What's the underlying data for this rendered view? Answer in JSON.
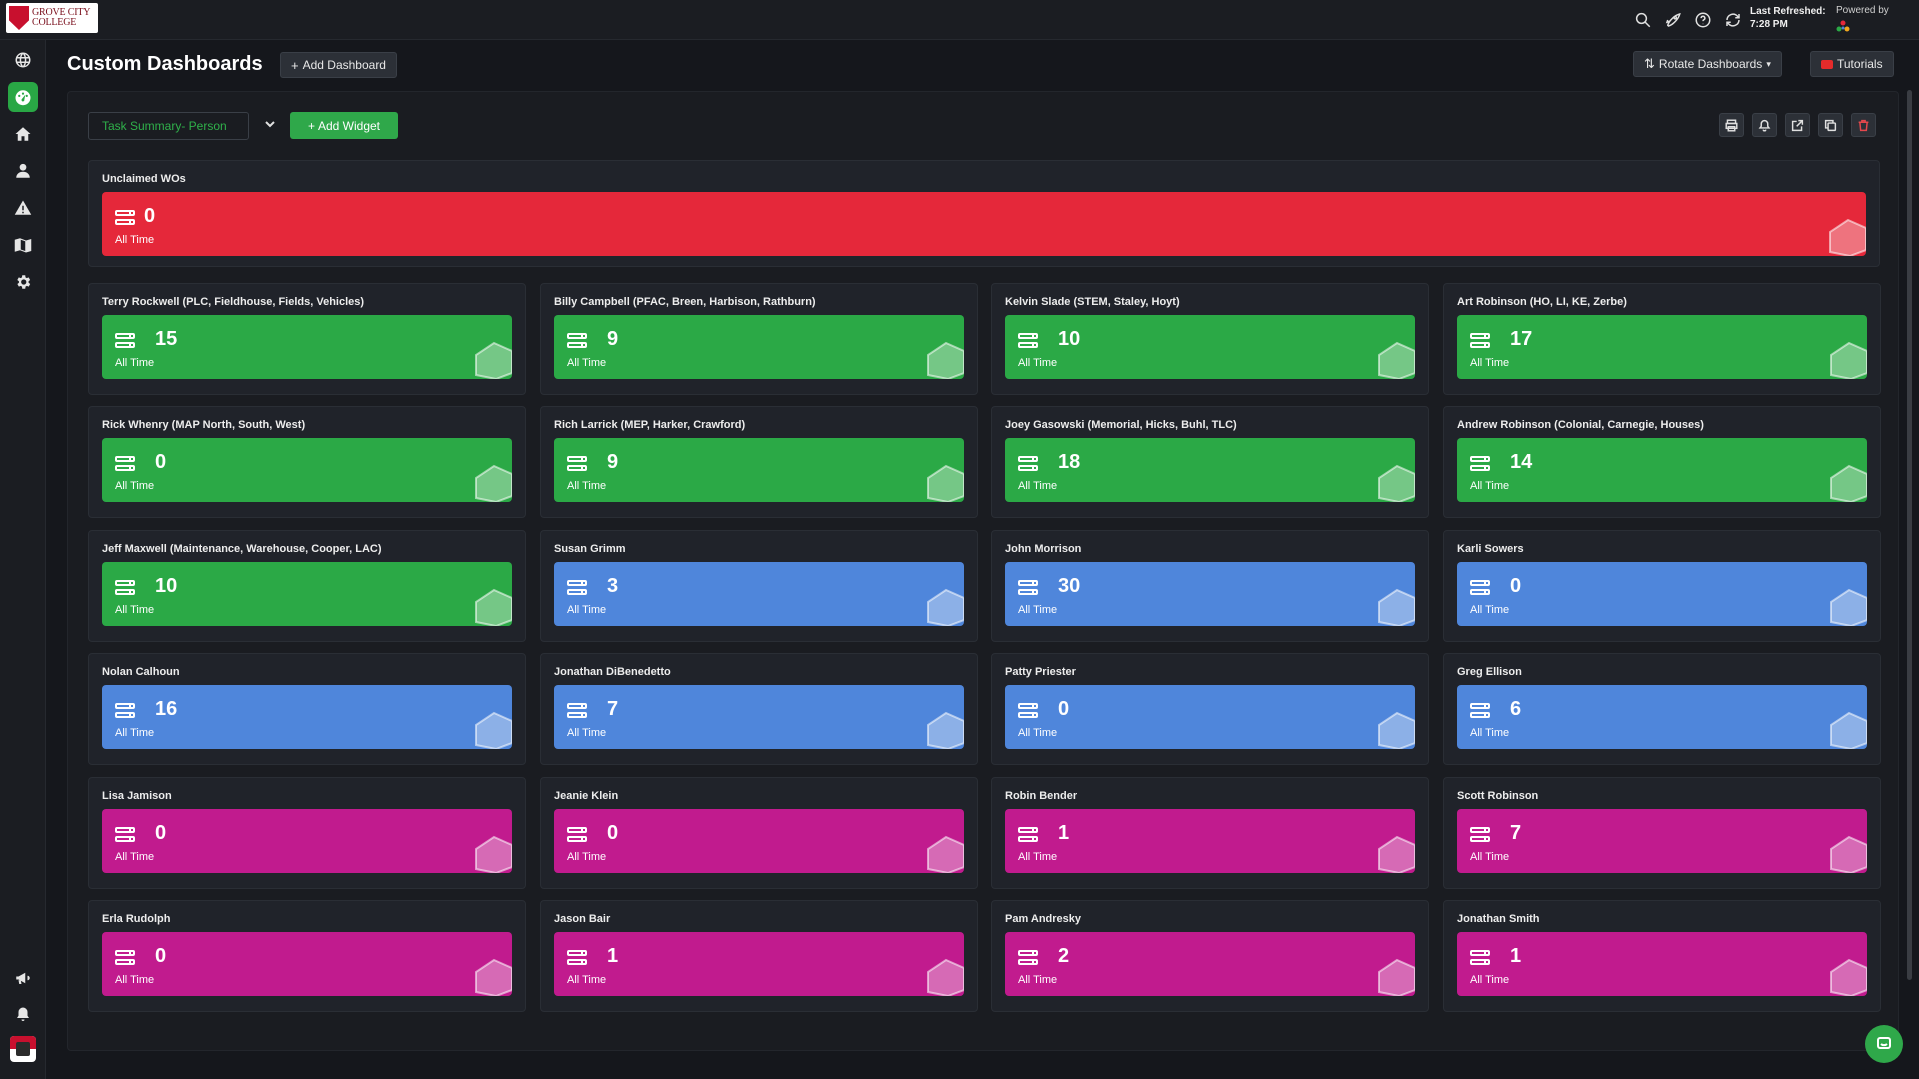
{
  "brand": {
    "logo_text": "GROVE CITY COLLEGE",
    "accent_green": "#2ba946",
    "accent_blue": "#4f86db",
    "accent_magenta": "#c11b8e",
    "accent_red": "#e5283a"
  },
  "topbar": {
    "last_refreshed_label": "Last Refreshed:",
    "last_refreshed_time": "7:28 PM",
    "powered_by": "Powered by",
    "icons": [
      "search-icon",
      "rocket-icon",
      "help-icon",
      "refresh-icon"
    ]
  },
  "sidebar": {
    "items": [
      "globe-icon",
      "dashboard-icon",
      "home-icon",
      "user-icon",
      "warning-icon",
      "map-icon",
      "gear-icon"
    ],
    "bottom_items": [
      "megaphone-icon",
      "bell-icon"
    ]
  },
  "header": {
    "title": "Custom Dashboards",
    "add_dashboard": "Add Dashboard",
    "rotate_dashboards": "Rotate Dashboards",
    "tutorials": "Tutorials"
  },
  "toolbar": {
    "selected_dashboard": "Task Summary- Person",
    "add_widget": "Add Widget",
    "tools": [
      "print-icon",
      "bell-icon",
      "share-icon",
      "copy-icon",
      "trash-icon"
    ]
  },
  "widgets": {
    "unclaimed": {
      "title": "Unclaimed WOs",
      "value": "0",
      "period": "All Time",
      "color": "red"
    },
    "people": [
      {
        "title": "Terry Rockwell (PLC, Fieldhouse, Fields, Vehicles)",
        "value": "15",
        "period": "All Time",
        "color": "green"
      },
      {
        "title": "Billy Campbell (PFAC, Breen, Harbison, Rathburn)",
        "value": "9",
        "period": "All Time",
        "color": "green"
      },
      {
        "title": "Kelvin Slade (STEM, Staley, Hoyt)",
        "value": "10",
        "period": "All Time",
        "color": "green"
      },
      {
        "title": "Art Robinson (HO, LI, KE, Zerbe)",
        "value": "17",
        "period": "All Time",
        "color": "green"
      },
      {
        "title": "Rick Whenry (MAP North, South, West)",
        "value": "0",
        "period": "All Time",
        "color": "green"
      },
      {
        "title": "Rich Larrick (MEP, Harker, Crawford)",
        "value": "9",
        "period": "All Time",
        "color": "green"
      },
      {
        "title": "Joey Gasowski (Memorial, Hicks, Buhl, TLC)",
        "value": "18",
        "period": "All Time",
        "color": "green"
      },
      {
        "title": "Andrew Robinson (Colonial, Carnegie, Houses)",
        "value": "14",
        "period": "All Time",
        "color": "green"
      },
      {
        "title": "Jeff Maxwell (Maintenance, Warehouse, Cooper, LAC)",
        "value": "10",
        "period": "All Time",
        "color": "green"
      },
      {
        "title": "Susan Grimm",
        "value": "3",
        "period": "All Time",
        "color": "blue"
      },
      {
        "title": "John Morrison",
        "value": "30",
        "period": "All Time",
        "color": "blue"
      },
      {
        "title": "Karli Sowers",
        "value": "0",
        "period": "All Time",
        "color": "blue"
      },
      {
        "title": "Nolan Calhoun",
        "value": "16",
        "period": "All Time",
        "color": "blue"
      },
      {
        "title": "Jonathan DiBenedetto",
        "value": "7",
        "period": "All Time",
        "color": "blue"
      },
      {
        "title": "Patty Priester",
        "value": "0",
        "period": "All Time",
        "color": "blue"
      },
      {
        "title": "Greg Ellison",
        "value": "6",
        "period": "All Time",
        "color": "blue"
      },
      {
        "title": "Lisa Jamison",
        "value": "0",
        "period": "All Time",
        "color": "magenta"
      },
      {
        "title": "Jeanie Klein",
        "value": "0",
        "period": "All Time",
        "color": "magenta"
      },
      {
        "title": "Robin Bender",
        "value": "1",
        "period": "All Time",
        "color": "magenta"
      },
      {
        "title": "Scott Robinson",
        "value": "7",
        "period": "All Time",
        "color": "magenta"
      },
      {
        "title": "Erla Rudolph",
        "value": "0",
        "period": "All Time",
        "color": "magenta"
      },
      {
        "title": "Jason Bair",
        "value": "1",
        "period": "All Time",
        "color": "magenta"
      },
      {
        "title": "Pam Andresky",
        "value": "2",
        "period": "All Time",
        "color": "magenta"
      },
      {
        "title": "Jonathan Smith",
        "value": "1",
        "period": "All Time",
        "color": "magenta"
      }
    ]
  }
}
